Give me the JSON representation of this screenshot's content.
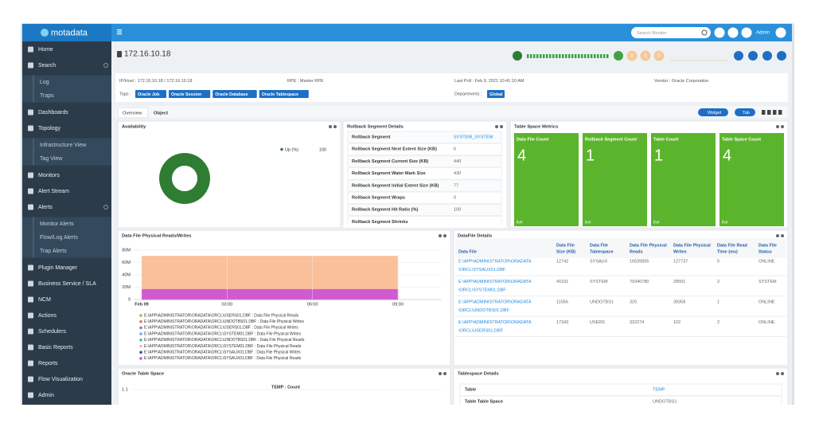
{
  "brand": "motadata",
  "search_placeholder": "Search Monitor",
  "user": "Admin",
  "sidebar": [
    {
      "label": "Home",
      "sub": false
    },
    {
      "label": "Search",
      "sub": false
    },
    {
      "label": "Log",
      "sub": true
    },
    {
      "label": "Traps",
      "sub": true
    },
    {
      "label": "Dashboards",
      "sub": false
    },
    {
      "label": "Topology",
      "sub": false
    },
    {
      "label": "Infrastructure View",
      "sub": true
    },
    {
      "label": "Tag View",
      "sub": true
    },
    {
      "label": "Monitors",
      "sub": false
    },
    {
      "label": "Alert Stream",
      "sub": false
    },
    {
      "label": "Alerts",
      "sub": false
    },
    {
      "label": "Monitor Alerts",
      "sub": true
    },
    {
      "label": "Flow/Log Alerts",
      "sub": true
    },
    {
      "label": "Trap Alerts",
      "sub": true
    },
    {
      "label": "Plugin Manager",
      "sub": false
    },
    {
      "label": "Business Service / SLA",
      "sub": false
    },
    {
      "label": "NCM",
      "sub": false
    },
    {
      "label": "Actions",
      "sub": false
    },
    {
      "label": "Schedulers",
      "sub": false
    },
    {
      "label": "Basic Reports",
      "sub": false
    },
    {
      "label": "Reports",
      "sub": false
    },
    {
      "label": "Flow Visualization",
      "sub": false
    },
    {
      "label": "Admin",
      "sub": false
    }
  ],
  "header": {
    "title": "172.16.10.18",
    "alert_counts": [
      0,
      0,
      0
    ]
  },
  "info": {
    "ip": "IP/Host : 172.16.10.18 / 172.16.10.18",
    "rpe": "RPE : Master RPE",
    "last_poll": "Last Poll : Feb 9, 2021 10:41:10 AM",
    "vendor": "Vendor : Oracle Corporation",
    "tags_label": "Tags :",
    "tags": [
      "Oracle Job",
      "Oracle Session",
      "Oracle Database",
      "Oracle Tablespace"
    ],
    "departments_label": "Departments :",
    "departments": "Global"
  },
  "tabs": [
    "Overview",
    "Object"
  ],
  "buttons": {
    "widget": "Widget",
    "tab": "Tab"
  },
  "availability": {
    "title": "Availability",
    "legend": "Up (%)",
    "value": 100
  },
  "rollback": {
    "title": "Rollback Segment Details",
    "rows": [
      [
        "Rollback Segment",
        "SYSTEM_SYSTEM"
      ],
      [
        "Rollback Segment Next Extent Size (KB)",
        6
      ],
      [
        "Rollback Segment Current Size (KB)",
        440
      ],
      [
        "Rollback Segment Water Mark Size",
        430
      ],
      [
        "Rollback Segment Initial Extent Size (KB)",
        77
      ],
      [
        "Rollback Segment Wraps",
        0
      ],
      [
        "Rollback Segment Hit Ratio (%)",
        100
      ],
      [
        "Rollback Segment Shrinks",
        ""
      ]
    ]
  },
  "metrics": {
    "title": "Table Space Metrics",
    "tiles": [
      {
        "label": "Data File Count",
        "value": 4,
        "status": "live"
      },
      {
        "label": "Rollback Segment Count",
        "value": 1,
        "status": "live"
      },
      {
        "label": "Table Count",
        "value": 1,
        "status": "live"
      },
      {
        "label": "Table Space Count",
        "value": 4,
        "status": "live"
      }
    ]
  },
  "chart_data": {
    "type": "area",
    "title": "Data File Physical Reads/Writes",
    "categories": [
      "Feb 09",
      "03:00",
      "06:00",
      "09:00"
    ],
    "ylim": [
      0,
      80000000
    ],
    "yticks": [
      0,
      {
        "value": 20000000,
        "label": "20M"
      },
      {
        "value": 40000000,
        "label": "40M"
      },
      {
        "value": 60000000,
        "label": "60M"
      },
      {
        "value": 80000000,
        "label": "80M"
      }
    ],
    "grid": true,
    "series": [
      {
        "name": "E:\\APP\\ADMINISTRATOR\\ORADATA\\ORCL\\USERS01.DBF : Data File Physical Reads",
        "color": "#8bc34a",
        "values": [
          332274,
          332274,
          332274,
          332274
        ]
      },
      {
        "name": "E:\\APP\\ADMINISTRATOR\\ORADATA\\ORCL\\UNDOTBS01.DBF : Data File Physical Writes",
        "color": "#e57373",
        "values": [
          39358,
          39358,
          39358,
          39358
        ]
      },
      {
        "name": "E:\\APP\\ADMINISTRATOR\\ORADATA\\ORCL\\USERS01.DBF : Data File Physical Writes",
        "color": "#9575cd",
        "values": [
          102,
          102,
          102,
          102
        ]
      },
      {
        "name": "E:\\APP\\ADMINISTRATOR\\ORADATA\\ORCL\\SYSTEM01.DBF : Data File Physical Writes",
        "color": "#64b5f6",
        "values": [
          28591,
          28591,
          28591,
          28591
        ]
      },
      {
        "name": "E:\\APP\\ADMINISTRATOR\\ORADATA\\ORCL\\UNDOTBS01.DBF : Data File Physical Reads",
        "color": "#4db6ac",
        "values": [
          320,
          320,
          320,
          320
        ]
      },
      {
        "name": "E:\\APP\\ADMINISTRATOR\\ORADATA\\ORCL\\SYSTEM01.DBF : Data File Physical Reads",
        "color": "#f9c09a",
        "values": [
          70340780,
          70340780,
          70340780,
          70340780
        ]
      },
      {
        "name": "E:\\APP\\ADMINISTRATOR\\ORADATA\\ORCL\\SYSAUX01.DBF : Data File Physical Writes",
        "color": "#3f51b5",
        "values": [
          127737,
          127737,
          127737,
          127737
        ]
      },
      {
        "name": "E:\\APP\\ADMINISTRATOR\\ORADATA\\ORCL\\SYSAUX01.DBF : Data File Physical Reads",
        "color": "#d05ad0",
        "values": [
          16535855,
          16535855,
          16535855,
          16535855
        ]
      }
    ]
  },
  "datafile": {
    "title": "DataFile Details",
    "headers": [
      [
        "Data File"
      ],
      [
        "Data File",
        "Size (KB)"
      ],
      [
        "Data File",
        "Tablespace"
      ],
      [
        "Data File Physical",
        "Reads"
      ],
      [
        "Data File Physical",
        "Writes"
      ],
      [
        "Data File Read",
        "Time (ms)"
      ],
      [
        "Data File",
        "Status"
      ]
    ],
    "rows": [
      [
        [
          "E:\\APP\\ADMINISTRATOR\\ORADATA",
          "\\ORCL\\SYSAUX01.DBF"
        ],
        12742,
        "SYSAUX",
        16535855,
        127737,
        0,
        "ONLINE"
      ],
      [
        [
          "E:\\APP\\ADMINISTRATOR\\ORADATA",
          "\\ORCL\\SYSTEM01.DBF"
        ],
        41531,
        "SYSTEM",
        70340780,
        28591,
        2,
        "SYSTEM"
      ],
      [
        [
          "E:\\APP\\ADMINISTRATOR\\ORADATA",
          "\\ORCL\\UNDOTBS01.DBF"
        ],
        11556,
        "UNDOTBS1",
        320,
        39358,
        1,
        "ONLINE"
      ],
      [
        [
          "E:\\APP\\ADMINISTRATOR\\ORADATA",
          "\\ORCL\\USERS01.DBF"
        ],
        17343,
        "USERS",
        332274,
        102,
        2,
        "ONLINE"
      ]
    ]
  },
  "tablespace_chart": {
    "title": "Oracle Table Space",
    "chart_title": "TEMP : Count",
    "yticks": [
      1.1
    ]
  },
  "tablespace_details": {
    "title": "Tablespace Details",
    "rows": [
      [
        "Table",
        "TEMP"
      ],
      [
        "Table Table Space",
        "UNDOTBS1"
      ]
    ]
  }
}
